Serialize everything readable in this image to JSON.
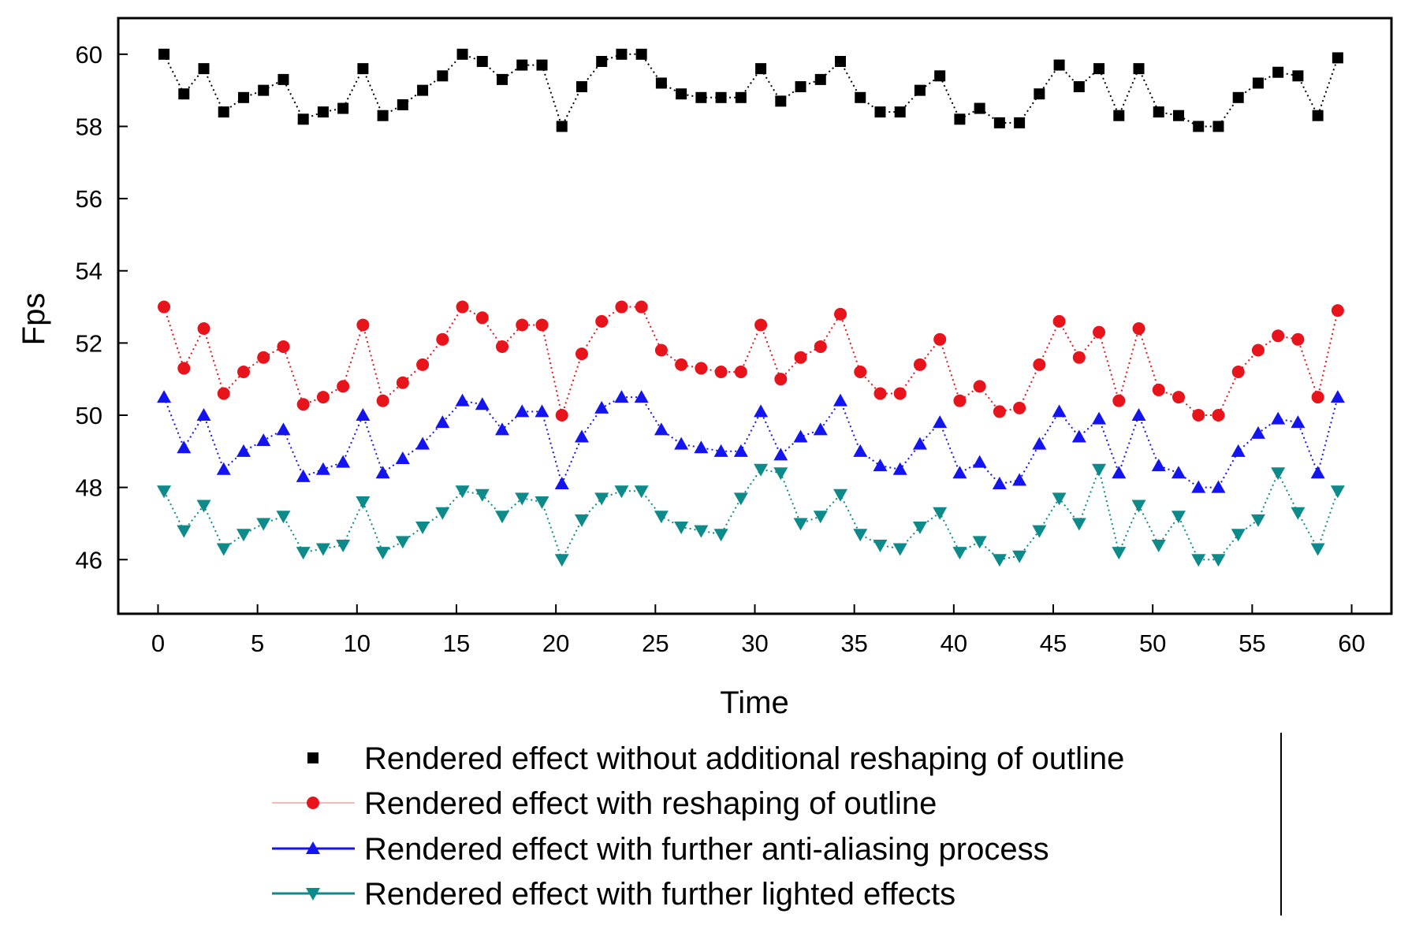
{
  "chart_data": {
    "type": "line",
    "xlabel": "Time",
    "ylabel": "Fps",
    "xlim": [
      -2,
      62
    ],
    "ylim": [
      44.5,
      61
    ],
    "x_ticks": [
      0,
      5,
      10,
      15,
      20,
      25,
      30,
      35,
      40,
      45,
      50,
      55,
      60
    ],
    "y_ticks": [
      46,
      48,
      50,
      52,
      54,
      56,
      58,
      60
    ],
    "grid": false,
    "legend_position": "bottom-center",
    "x": [
      0.3,
      1.3,
      2.3,
      3.3,
      4.3,
      5.3,
      6.3,
      7.3,
      8.3,
      9.3,
      10.3,
      11.3,
      12.3,
      13.3,
      14.3,
      15.3,
      16.3,
      17.3,
      18.3,
      19.3,
      20.3,
      21.3,
      22.3,
      23.3,
      24.3,
      25.3,
      26.3,
      27.3,
      28.3,
      29.3,
      30.3,
      31.3,
      32.3,
      33.3,
      34.3,
      35.3,
      36.3,
      37.3,
      38.3,
      39.3,
      40.3,
      41.3,
      42.3,
      43.3,
      44.3,
      45.3,
      46.3,
      47.3,
      48.3,
      49.3,
      50.3,
      51.3,
      52.3,
      53.3,
      54.3,
      55.3,
      56.3,
      57.3,
      58.3,
      59.3
    ],
    "series": [
      {
        "name": "Rendered effect without additional reshaping of  outline",
        "marker": "square",
        "line_style": "dotted",
        "color": "#000000",
        "values": [
          60.0,
          58.9,
          59.6,
          58.4,
          58.8,
          59.0,
          59.3,
          58.2,
          58.4,
          58.5,
          59.6,
          58.3,
          58.6,
          59.0,
          59.4,
          60.0,
          59.8,
          59.3,
          59.7,
          59.7,
          58.0,
          59.1,
          59.8,
          60.0,
          60.0,
          59.2,
          58.9,
          58.8,
          58.8,
          58.8,
          59.6,
          58.7,
          59.1,
          59.3,
          59.8,
          58.8,
          58.4,
          58.4,
          59.0,
          59.4,
          58.2,
          58.5,
          58.1,
          58.1,
          58.9,
          59.7,
          59.1,
          59.6,
          58.3,
          59.6,
          58.4,
          58.3,
          58.0,
          58.0,
          58.8,
          59.2,
          59.5,
          59.4,
          58.3,
          59.9
        ]
      },
      {
        "name": "Rendered effect with reshaping of outline",
        "marker": "circle",
        "line_style": "dotted",
        "color": "#e8141b",
        "values": [
          53.0,
          51.3,
          52.4,
          50.6,
          51.2,
          51.6,
          51.9,
          50.3,
          50.5,
          50.8,
          52.5,
          50.4,
          50.9,
          51.4,
          52.1,
          53.0,
          52.7,
          51.9,
          52.5,
          52.5,
          50.0,
          51.7,
          52.6,
          53.0,
          53.0,
          51.8,
          51.4,
          51.3,
          51.2,
          51.2,
          52.5,
          51.0,
          51.6,
          51.9,
          52.8,
          51.2,
          50.6,
          50.6,
          51.4,
          52.1,
          50.4,
          50.8,
          50.1,
          50.2,
          51.4,
          52.6,
          51.6,
          52.3,
          50.4,
          52.4,
          50.7,
          50.5,
          50.0,
          50.0,
          51.2,
          51.8,
          52.2,
          52.1,
          50.5,
          52.9
        ]
      },
      {
        "name": "Rendered effect with further anti-aliasing process",
        "marker": "triangle-up",
        "line_style": "dotted",
        "color": "#1414f0",
        "values": [
          50.5,
          49.1,
          50.0,
          48.5,
          49.0,
          49.3,
          49.6,
          48.3,
          48.5,
          48.7,
          50.0,
          48.4,
          48.8,
          49.2,
          49.8,
          50.4,
          50.3,
          49.6,
          50.1,
          50.1,
          48.1,
          49.4,
          50.2,
          50.5,
          50.5,
          49.6,
          49.2,
          49.1,
          49.0,
          49.0,
          50.1,
          48.9,
          49.4,
          49.6,
          50.4,
          49.0,
          48.6,
          48.5,
          49.2,
          49.8,
          48.4,
          48.7,
          48.1,
          48.2,
          49.2,
          50.1,
          49.4,
          49.9,
          48.4,
          50.0,
          48.6,
          48.4,
          48.0,
          48.0,
          49.0,
          49.5,
          49.9,
          49.8,
          48.4,
          50.5
        ]
      },
      {
        "name": "Rendered effect with further lighted effects",
        "marker": "triangle-down",
        "line_style": "dotted",
        "color": "#0d8a8a",
        "values": [
          47.9,
          46.8,
          47.5,
          46.3,
          46.7,
          47.0,
          47.2,
          46.2,
          46.3,
          46.4,
          47.6,
          46.2,
          46.5,
          46.9,
          47.3,
          47.9,
          47.8,
          47.2,
          47.7,
          47.6,
          46.0,
          47.1,
          47.7,
          47.9,
          47.9,
          47.2,
          46.9,
          46.8,
          46.7,
          47.7,
          48.5,
          48.4,
          47.0,
          47.2,
          47.8,
          46.7,
          46.4,
          46.3,
          46.9,
          47.3,
          46.2,
          46.5,
          46.0,
          46.1,
          46.8,
          47.7,
          47.0,
          48.5,
          46.2,
          47.5,
          46.4,
          47.2,
          46.0,
          46.0,
          46.7,
          47.1,
          48.4,
          47.3,
          46.3,
          47.9
        ]
      }
    ]
  }
}
